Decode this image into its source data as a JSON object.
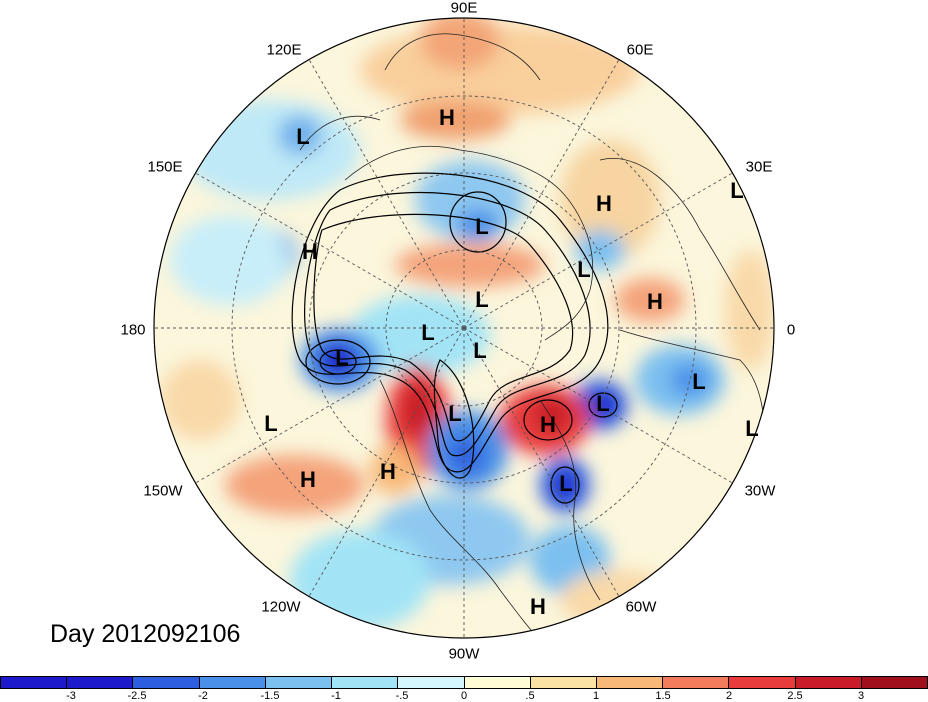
{
  "map": {
    "projection": "north-polar-stereographic",
    "longitude_labels": [
      "90E",
      "60E",
      "30E",
      "0",
      "30W",
      "60W",
      "90W",
      "120W",
      "150W",
      "180",
      "150E",
      "120E"
    ],
    "features": [
      {
        "type": "H"
      },
      {
        "type": "L"
      },
      {
        "type": "L"
      },
      {
        "type": "H"
      },
      {
        "type": "L"
      },
      {
        "type": "L"
      },
      {
        "type": "H"
      },
      {
        "type": "L"
      },
      {
        "type": "H"
      },
      {
        "type": "L"
      },
      {
        "type": "L"
      },
      {
        "type": "L"
      },
      {
        "type": "L"
      },
      {
        "type": "L"
      },
      {
        "type": "L"
      },
      {
        "type": "L"
      },
      {
        "type": "H"
      },
      {
        "type": "L"
      },
      {
        "type": "L"
      },
      {
        "type": "H"
      },
      {
        "type": "H"
      },
      {
        "type": "H"
      }
    ]
  },
  "day_label": "Day 2012092106",
  "colorbar": {
    "colors": [
      "#1d1acc",
      "#2e5ee0",
      "#4a90e8",
      "#7cc0f0",
      "#a2e4f6",
      "#d4f6fc",
      "#fefcd4",
      "#fae2a4",
      "#f8b878",
      "#f27c5c",
      "#e83c3c",
      "#c81c28",
      "#a0101c"
    ],
    "tick_labels": [
      "-3",
      "-2.5",
      "-2",
      "-1.5",
      "-1",
      "-.5",
      "0",
      ".5",
      "1",
      "1.5",
      "2",
      "2.5",
      "3"
    ]
  }
}
